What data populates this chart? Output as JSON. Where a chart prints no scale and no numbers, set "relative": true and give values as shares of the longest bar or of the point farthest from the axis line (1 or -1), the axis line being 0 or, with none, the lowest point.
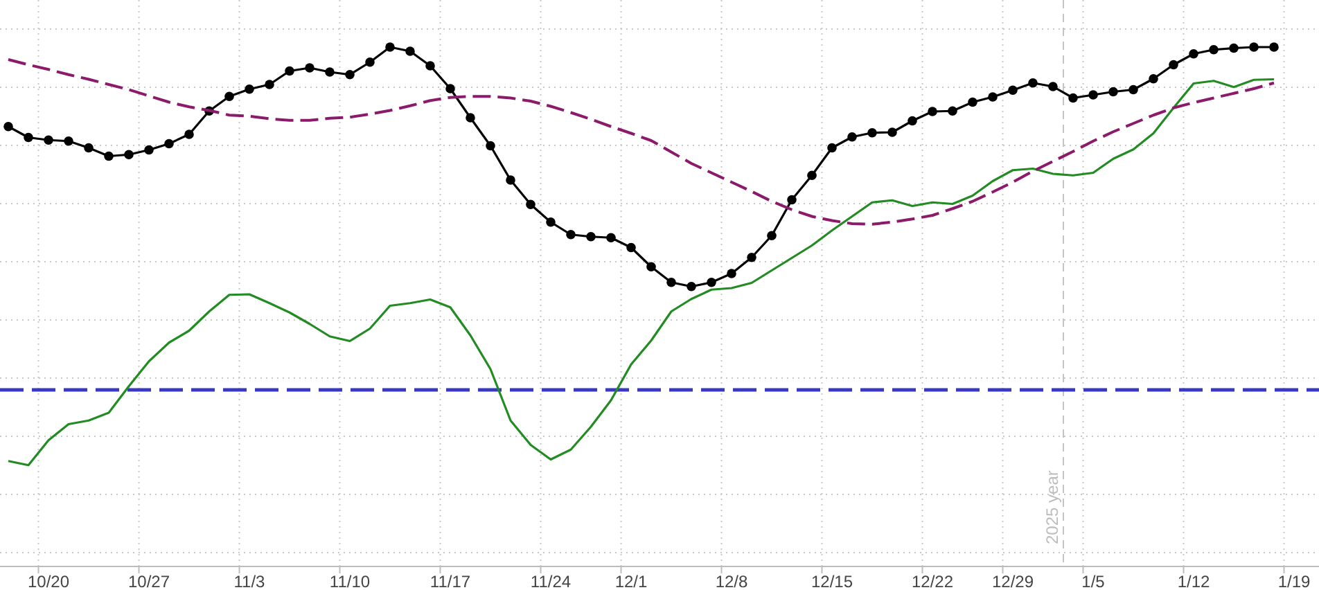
{
  "chart_data": {
    "type": "line",
    "relative": true,
    "grid": true,
    "categories": [
      null,
      null,
      "10/20",
      null,
      null,
      null,
      null,
      "10/27",
      null,
      null,
      null,
      null,
      "11/3",
      null,
      null,
      null,
      null,
      "11/10",
      null,
      null,
      null,
      null,
      "11/17",
      null,
      null,
      null,
      null,
      "11/24",
      null,
      null,
      null,
      "12/1",
      null,
      null,
      null,
      null,
      "12/8",
      null,
      null,
      null,
      null,
      "12/15",
      null,
      null,
      null,
      null,
      "12/22",
      null,
      null,
      null,
      "12/29",
      null,
      null,
      null,
      "1/5",
      null,
      null,
      null,
      null,
      "1/12",
      null,
      null,
      null,
      null,
      "1/19"
    ],
    "series": [
      {
        "color": "#000000",
        "marker": "circle",
        "line_style": "solid",
        "values": [
          0.847,
          0.826,
          0.821,
          0.819,
          0.806,
          0.79,
          0.793,
          0.802,
          0.814,
          0.832,
          0.877,
          0.905,
          0.919,
          0.928,
          0.954,
          0.96,
          0.952,
          0.947,
          0.971,
          1.0,
          0.992,
          0.964,
          0.92,
          0.864,
          0.81,
          0.744,
          0.697,
          0.663,
          0.639,
          0.635,
          0.633,
          0.614,
          0.577,
          0.547,
          0.539,
          0.547,
          0.564,
          0.595,
          0.637,
          0.706,
          0.753,
          0.806,
          0.827,
          0.835,
          0.836,
          0.858,
          0.876,
          0.877,
          0.894,
          0.904,
          0.917,
          0.931,
          0.924,
          0.902,
          0.908,
          0.914,
          0.918,
          0.939,
          0.966,
          0.987,
          0.995,
          0.998,
          1.0,
          1.0,
          null
        ]
      },
      {
        "color": "#228b22",
        "marker": "none",
        "line_style": "solid",
        "values": [
          0.203,
          0.195,
          0.243,
          0.274,
          0.281,
          0.296,
          0.347,
          0.395,
          0.431,
          0.454,
          0.491,
          0.523,
          0.524,
          0.507,
          0.489,
          0.467,
          0.443,
          0.434,
          0.458,
          0.502,
          0.507,
          0.514,
          0.499,
          0.445,
          0.38,
          0.281,
          0.234,
          0.206,
          0.225,
          0.269,
          0.32,
          0.389,
          0.435,
          0.491,
          0.515,
          0.533,
          0.536,
          0.546,
          0.57,
          0.594,
          0.618,
          0.647,
          0.674,
          0.701,
          0.705,
          0.694,
          0.701,
          0.698,
          0.714,
          0.742,
          0.763,
          0.766,
          0.756,
          0.753,
          0.758,
          0.785,
          0.803,
          0.834,
          0.883,
          0.93,
          0.935,
          0.923,
          0.937,
          0.938,
          null
        ]
      },
      {
        "color": "#8b1a6b",
        "marker": "none",
        "line_style": "dashed",
        "values": [
          0.976,
          0.966,
          0.957,
          0.947,
          0.938,
          0.928,
          0.918,
          0.906,
          0.894,
          0.885,
          0.878,
          0.869,
          0.867,
          0.862,
          0.859,
          0.859,
          0.863,
          0.865,
          0.871,
          0.878,
          0.887,
          0.897,
          0.903,
          0.905,
          0.905,
          0.902,
          0.896,
          0.886,
          0.874,
          0.861,
          0.847,
          0.834,
          0.82,
          0.798,
          0.776,
          0.758,
          0.74,
          0.722,
          0.703,
          0.687,
          0.674,
          0.666,
          0.66,
          0.659,
          0.663,
          0.669,
          0.676,
          0.689,
          0.703,
          0.721,
          0.74,
          0.761,
          0.78,
          0.799,
          0.819,
          0.837,
          0.853,
          0.869,
          0.883,
          0.893,
          0.902,
          0.911,
          0.92,
          0.931,
          null
        ]
      }
    ],
    "ref_lines": [
      {
        "axis": "y",
        "value": 0.34,
        "color": "#3838c0",
        "line_style": "dashed"
      }
    ],
    "annotations": [
      "2025 year"
    ]
  }
}
